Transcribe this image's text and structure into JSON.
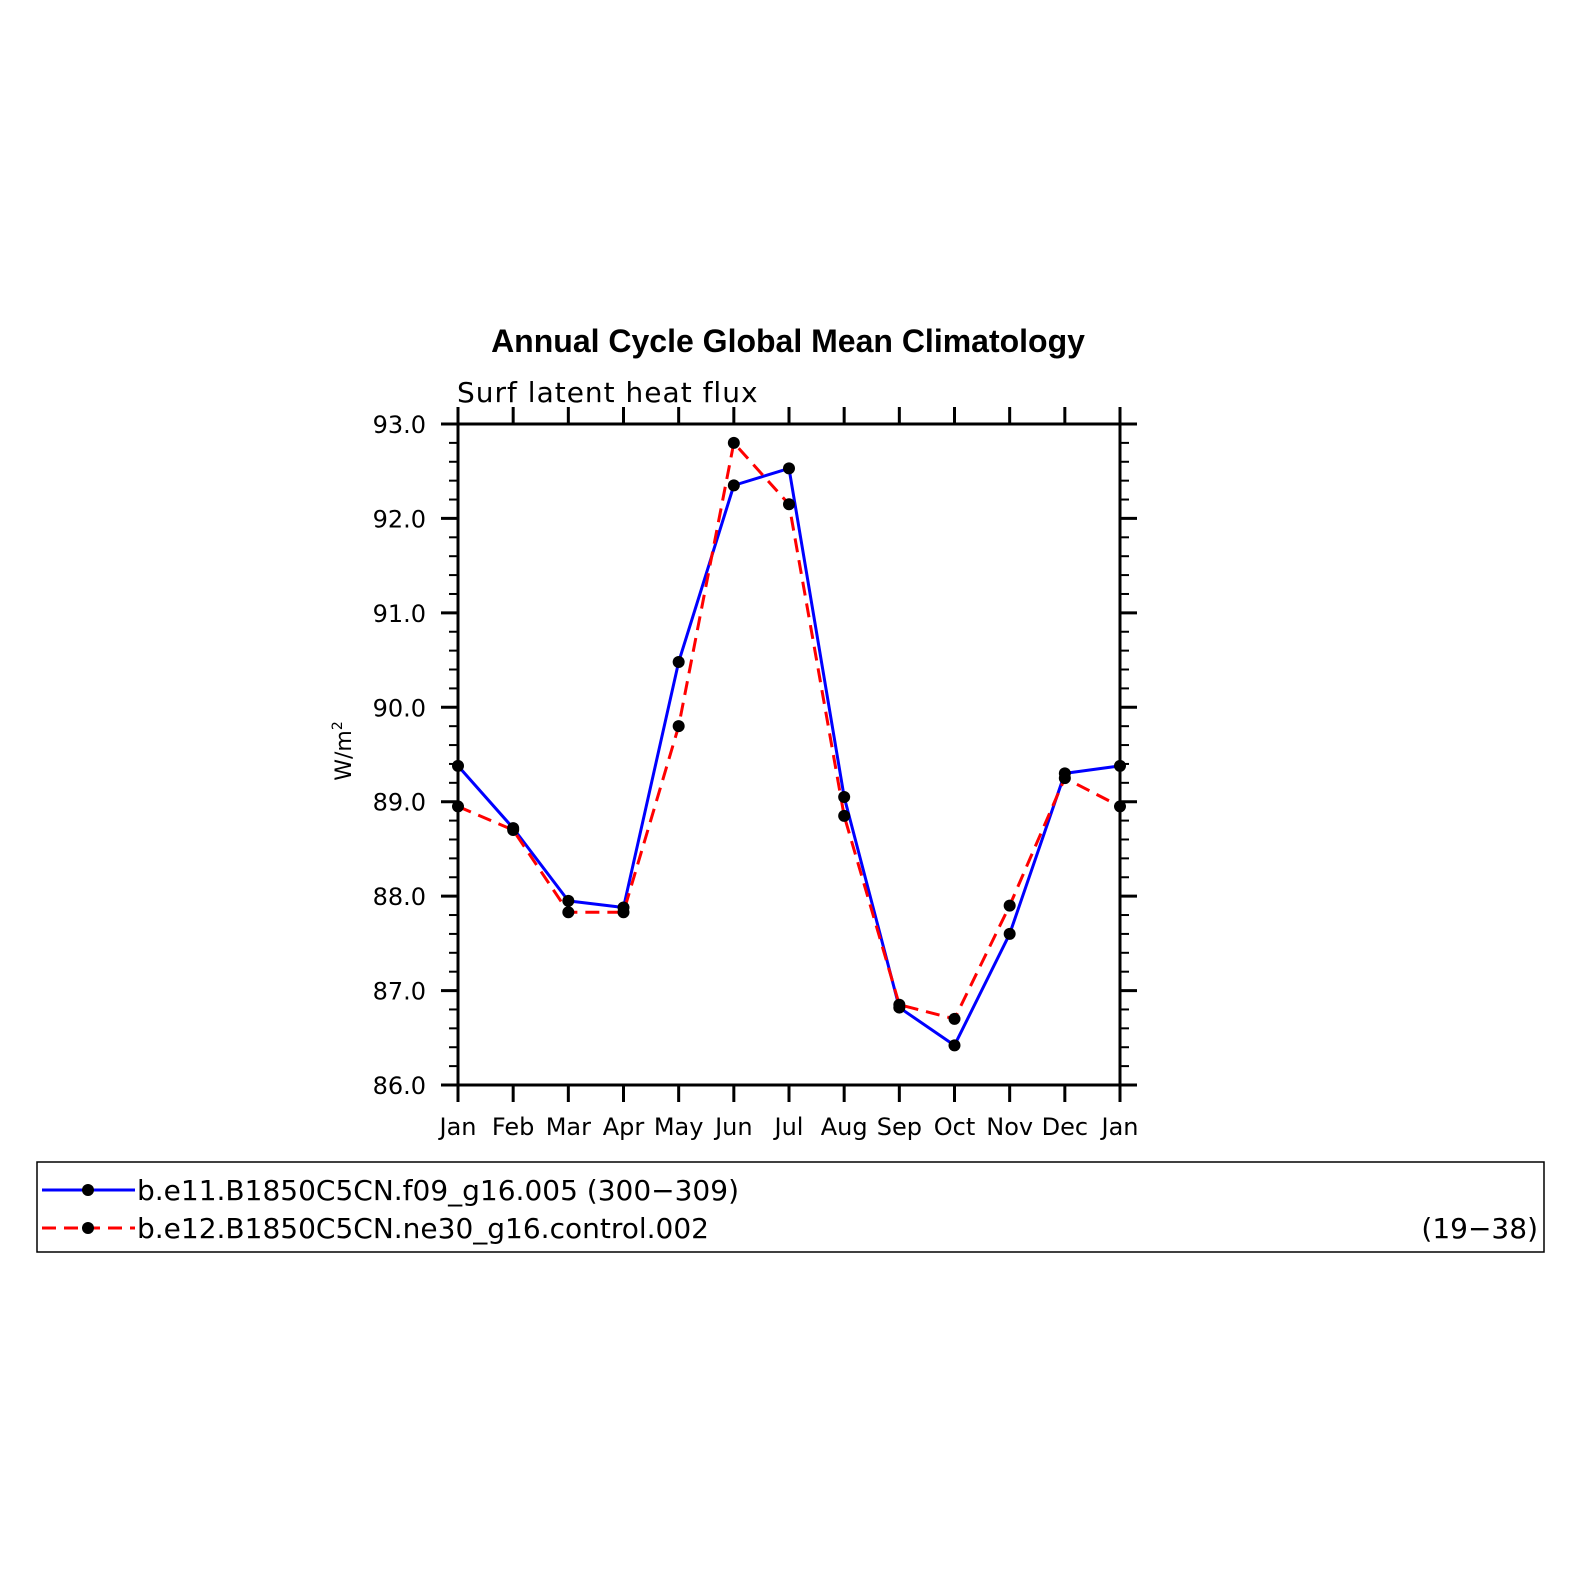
{
  "chart_data": {
    "type": "line",
    "title": "Annual Cycle Global Mean Climatology",
    "subtitle": "Surf latent heat flux",
    "ylabel": "W/m",
    "ylabel_sup": "2",
    "categories": [
      "Jan",
      "Feb",
      "Mar",
      "Apr",
      "May",
      "Jun",
      "Jul",
      "Aug",
      "Sep",
      "Oct",
      "Nov",
      "Dec",
      "Jan"
    ],
    "ylim": [
      86.0,
      93.0
    ],
    "yticks": [
      "86.0",
      "87.0",
      "88.0",
      "89.0",
      "90.0",
      "91.0",
      "92.0",
      "93.0"
    ],
    "grid": false,
    "legend_position": "bottom",
    "series": [
      {
        "name": "b.e11.B1850C5CN.f09_g16.005 (300−309)",
        "color": "#0000ff",
        "dash": "solid",
        "values": [
          89.38,
          88.72,
          87.95,
          87.88,
          90.48,
          92.35,
          92.53,
          89.05,
          86.82,
          86.42,
          87.6,
          89.3,
          89.38
        ]
      },
      {
        "name": "b.e12.B1850C5CN.ne30_g16.control.002",
        "name_suffix": "(19−38)",
        "color": "#ff0000",
        "dash": "dashed",
        "values": [
          88.95,
          88.7,
          87.83,
          87.83,
          89.8,
          92.8,
          92.15,
          88.85,
          86.85,
          86.7,
          87.9,
          89.25,
          88.95
        ]
      }
    ]
  }
}
